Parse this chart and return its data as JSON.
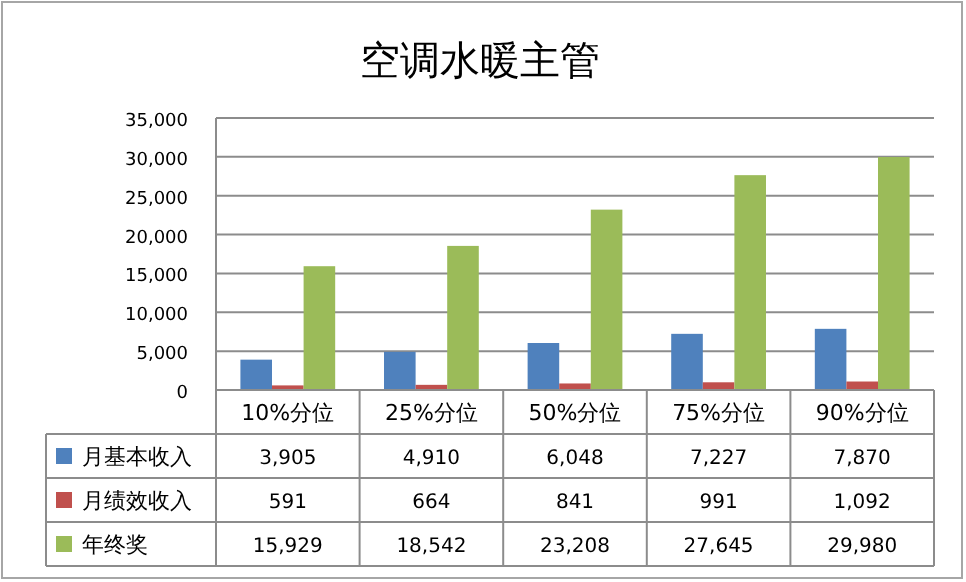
{
  "chart_data": {
    "type": "bar",
    "title": "空调水暖主管",
    "categories": [
      "10%分位",
      "25%分位",
      "50%分位",
      "75%分位",
      "90%分位"
    ],
    "series": [
      {
        "name": "月基本收入",
        "color": "#4f81bd",
        "values": [
          3905,
          4910,
          6048,
          7227,
          7870
        ],
        "value_labels": [
          "3,905",
          "4,910",
          "6,048",
          "7,227",
          "7,870"
        ]
      },
      {
        "name": "月绩效收入",
        "color": "#c0504d",
        "values": [
          591,
          664,
          841,
          991,
          1092
        ],
        "value_labels": [
          "591",
          "664",
          "841",
          "991",
          "1,092"
        ]
      },
      {
        "name": "年终奖",
        "color": "#9bbb59",
        "values": [
          15929,
          18542,
          23208,
          27645,
          29980
        ],
        "value_labels": [
          "15,929",
          "18,542",
          "23,208",
          "27,645",
          "29,980"
        ]
      }
    ],
    "ylim": [
      0,
      35000
    ],
    "yticks": [
      {
        "value": 0,
        "label": "0"
      },
      {
        "value": 5000,
        "label": "5,000"
      },
      {
        "value": 10000,
        "label": "10,000"
      },
      {
        "value": 15000,
        "label": "15,000"
      },
      {
        "value": 20000,
        "label": "20,000"
      },
      {
        "value": 25000,
        "label": "25,000"
      },
      {
        "value": 30000,
        "label": "30,000"
      },
      {
        "value": 35000,
        "label": "35,000"
      }
    ],
    "grid": "y",
    "legend": "bottom"
  }
}
